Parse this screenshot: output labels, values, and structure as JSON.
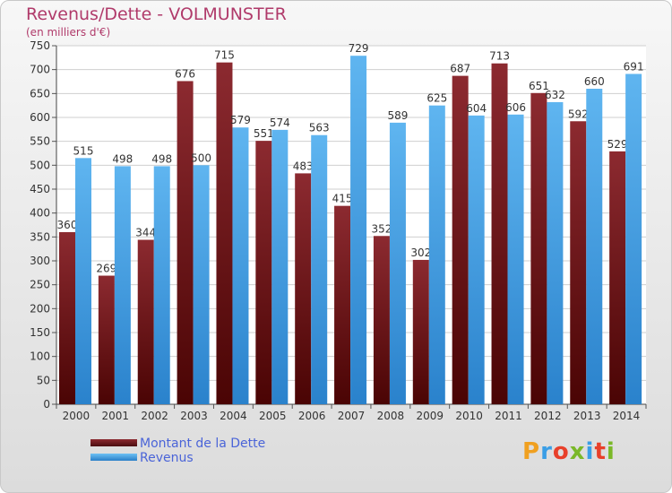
{
  "title": "Revenus/Dette - VOLMUNSTER",
  "subtitle": "(en milliers d'€)",
  "colors": {
    "dette": "#6e1a1f",
    "revenus": "#3f9fe6",
    "title": "#b03a6a",
    "legend_text": "#4a64d8"
  },
  "chart_data": {
    "type": "bar",
    "title": "Revenus/Dette - VOLMUNSTER",
    "ylabel": "(en milliers d'€)",
    "ylim": [
      0,
      750
    ],
    "yticks": [
      0,
      50,
      100,
      150,
      200,
      250,
      300,
      350,
      400,
      450,
      500,
      550,
      600,
      650,
      700,
      750
    ],
    "grid": true,
    "legend_position": "bottom-left",
    "categories": [
      "2000",
      "2001",
      "2002",
      "2003",
      "2004",
      "2005",
      "2006",
      "2007",
      "2008",
      "2009",
      "2010",
      "2011",
      "2012",
      "2013",
      "2014"
    ],
    "series": [
      {
        "name": "Montant de la Dette",
        "values": [
          360,
          269,
          344,
          676,
          715,
          551,
          483,
          415,
          352,
          302,
          687,
          713,
          651,
          592,
          529
        ]
      },
      {
        "name": "Revenus",
        "values": [
          515,
          498,
          498,
          500,
          579,
          574,
          563,
          729,
          589,
          625,
          604,
          606,
          632,
          660,
          691
        ]
      }
    ]
  },
  "legend": [
    {
      "label": "Montant de la Dette"
    },
    {
      "label": "Revenus"
    }
  ],
  "logo": {
    "text": "Proxiti"
  }
}
